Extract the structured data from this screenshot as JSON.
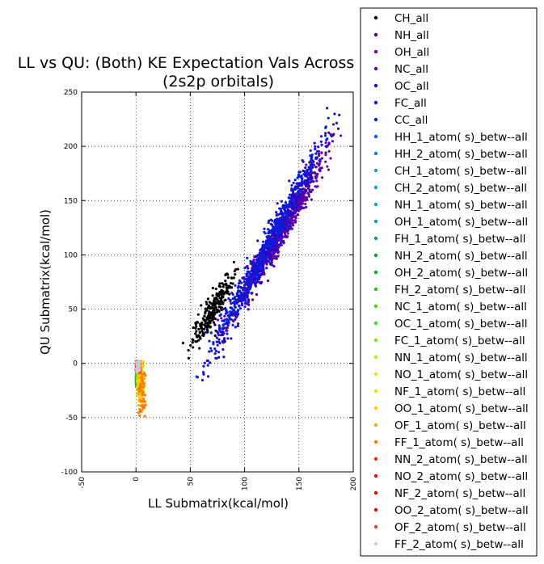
{
  "chart_data": {
    "type": "scatter",
    "title": "LL vs QU: (Both) KE Expectation Vals Across",
    "subtitle": "(2s2p orbitals)",
    "xlabel": "LL Submatrix(kcal/mol)",
    "ylabel": "QU Submatrix(kcal/mol)",
    "xlim": [
      -50,
      200
    ],
    "ylim": [
      -100,
      250
    ],
    "xticks": [
      -50,
      0,
      50,
      100,
      150,
      200
    ],
    "yticks": [
      -100,
      -50,
      0,
      50,
      100,
      150,
      200,
      250
    ],
    "grid": true,
    "legend_position": "right, outside plot area",
    "series": [
      {
        "name": "CH_all",
        "color": "#000000",
        "approx_x_range": [
          48,
          95
        ],
        "approx_y_range": [
          10,
          90
        ]
      },
      {
        "name": "NH_all",
        "color": "#4b0082",
        "approx_x_range": [
          80,
          185
        ],
        "approx_y_range": [
          30,
          210
        ]
      },
      {
        "name": "OH_all",
        "color": "#6a00a8",
        "approx_x_range": [
          80,
          185
        ],
        "approx_y_range": [
          30,
          210
        ]
      },
      {
        "name": "NC_all",
        "color": "#5a00b0",
        "approx_x_range": [
          80,
          180
        ],
        "approx_y_range": [
          30,
          200
        ]
      },
      {
        "name": "OC_all",
        "color": "#2a00c8",
        "approx_x_range": [
          60,
          185
        ],
        "approx_y_range": [
          -12,
          228
        ]
      },
      {
        "name": "FC_all",
        "color": "#1a10d0",
        "approx_x_range": [
          60,
          185
        ],
        "approx_y_range": [
          -12,
          228
        ]
      },
      {
        "name": "CC_all",
        "color": "#0022d8",
        "approx_x_range": [
          55,
          185
        ],
        "approx_y_range": [
          -12,
          228
        ]
      },
      {
        "name": "HH_1_atom( s)_betw--all",
        "color": "#0060dd",
        "approx_x_range": [
          0,
          5
        ],
        "approx_y_range": [
          -20,
          2
        ]
      },
      {
        "name": "HH_2_atom( s)_betw--all",
        "color": "#0088cc",
        "approx_x_range": [
          0,
          5
        ],
        "approx_y_range": [
          -20,
          2
        ]
      },
      {
        "name": "CH_1_atom( s)_betw--all",
        "color": "#00a0c0",
        "approx_x_range": [
          0,
          5
        ],
        "approx_y_range": [
          -20,
          2
        ]
      },
      {
        "name": "CH_2_atom( s)_betw--all",
        "color": "#00aab0",
        "approx_x_range": [
          0,
          5
        ],
        "approx_y_range": [
          -20,
          2
        ]
      },
      {
        "name": "NH_1_atom( s)_betw--all",
        "color": "#00aaa0",
        "approx_x_range": [
          0,
          5
        ],
        "approx_y_range": [
          -20,
          2
        ]
      },
      {
        "name": "OH_1_atom( s)_betw--all",
        "color": "#00a890",
        "approx_x_range": [
          0,
          5
        ],
        "approx_y_range": [
          -20,
          2
        ]
      },
      {
        "name": "FH_1_atom( s)_betw--all",
        "color": "#00a070",
        "approx_x_range": [
          0,
          5
        ],
        "approx_y_range": [
          -20,
          2
        ]
      },
      {
        "name": "NH_2_atom( s)_betw--all",
        "color": "#00a040",
        "approx_x_range": [
          0,
          6
        ],
        "approx_y_range": [
          -22,
          2
        ]
      },
      {
        "name": "OH_2_atom( s)_betw--all",
        "color": "#00b020",
        "approx_x_range": [
          0,
          6
        ],
        "approx_y_range": [
          -22,
          2
        ]
      },
      {
        "name": "FH_2_atom( s)_betw--all",
        "color": "#20c800",
        "approx_x_range": [
          0,
          6
        ],
        "approx_y_range": [
          -22,
          2
        ]
      },
      {
        "name": "NC_1_atom( s)_betw--all",
        "color": "#40d800",
        "approx_x_range": [
          1,
          6
        ],
        "approx_y_range": [
          -25,
          2
        ]
      },
      {
        "name": "OC_1_atom( s)_betw--all",
        "color": "#30e020",
        "approx_x_range": [
          1,
          6
        ],
        "approx_y_range": [
          -25,
          2
        ]
      },
      {
        "name": "FC_1_atom( s)_betw--all",
        "color": "#80e800",
        "approx_x_range": [
          1,
          6
        ],
        "approx_y_range": [
          -25,
          2
        ]
      },
      {
        "name": "NN_1_atom( s)_betw--all",
        "color": "#b0f000",
        "approx_x_range": [
          1,
          7
        ],
        "approx_y_range": [
          -30,
          2
        ]
      },
      {
        "name": "NO_1_atom( s)_betw--all",
        "color": "#d8e800",
        "approx_x_range": [
          1,
          7
        ],
        "approx_y_range": [
          -30,
          2
        ]
      },
      {
        "name": "NF_1_atom( s)_betw--all",
        "color": "#e8e000",
        "approx_x_range": [
          1,
          7
        ],
        "approx_y_range": [
          -30,
          2
        ]
      },
      {
        "name": "OO_1_atom( s)_betw--all",
        "color": "#f8d000",
        "approx_x_range": [
          1,
          7
        ],
        "approx_y_range": [
          -35,
          2
        ]
      },
      {
        "name": "OF_1_atom( s)_betw--all",
        "color": "#ffa800",
        "approx_x_range": [
          2,
          8
        ],
        "approx_y_range": [
          -45,
          -5
        ]
      },
      {
        "name": "FF_1_atom( s)_betw--all",
        "color": "#ff7800",
        "approx_x_range": [
          2,
          9
        ],
        "approx_y_range": [
          -49,
          -5
        ]
      },
      {
        "name": "NN_2_atom( s)_betw--all",
        "color": "#ff2000",
        "approx_x_range": [
          0,
          4
        ],
        "approx_y_range": [
          -8,
          2
        ]
      },
      {
        "name": "NO_2_atom( s)_betw--all",
        "color": "#f00000",
        "approx_x_range": [
          0,
          4
        ],
        "approx_y_range": [
          -8,
          2
        ]
      },
      {
        "name": "NF_2_atom( s)_betw--all",
        "color": "#e00000",
        "approx_x_range": [
          0,
          4
        ],
        "approx_y_range": [
          -8,
          2
        ]
      },
      {
        "name": "OO_2_atom( s)_betw--all",
        "color": "#d80000",
        "approx_x_range": [
          0,
          4
        ],
        "approx_y_range": [
          -8,
          2
        ]
      },
      {
        "name": "OF_2_atom( s)_betw--all",
        "color": "#d84040",
        "approx_x_range": [
          0,
          4
        ],
        "approx_y_range": [
          -8,
          2
        ]
      },
      {
        "name": "FF_2_atom( s)_betw--all",
        "color": "#cccccc",
        "approx_x_range": [
          0,
          4
        ],
        "approx_y_range": [
          -8,
          2
        ]
      }
    ]
  }
}
